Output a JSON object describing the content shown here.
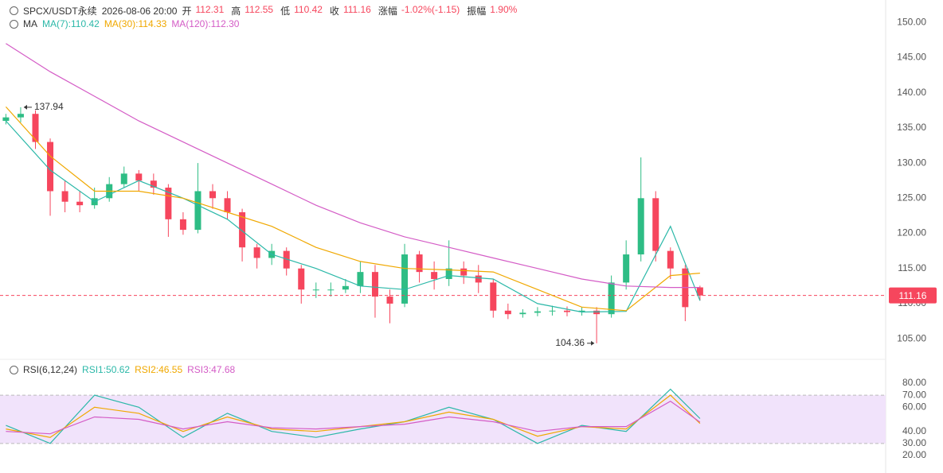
{
  "header": {
    "symbol": "SPCX/USDT永续",
    "time": "2026-08-06 20:00",
    "fields": [
      {
        "label": "开",
        "value": "112.31"
      },
      {
        "label": "高",
        "value": "112.55"
      },
      {
        "label": "低",
        "value": "110.42"
      },
      {
        "label": "收",
        "value": "111.16"
      },
      {
        "label": "涨幅",
        "value": "-1.02%(-1.15)"
      },
      {
        "label": "振幅",
        "value": "1.90%"
      }
    ],
    "value_color": "#f6465d"
  },
  "chart_data": [
    {
      "type": "candlestick",
      "indicator": "MA",
      "xlim": [
        -0.4,
        47.6
      ],
      "ylim": [
        102.3,
        153.2
      ],
      "yticks": [
        {
          "value": 105,
          "label": "105.00"
        },
        {
          "value": 110,
          "label": "110.00"
        },
        {
          "value": 115,
          "label": "115.00"
        },
        {
          "value": 120,
          "label": "120.00"
        },
        {
          "value": 125,
          "label": "125.00"
        },
        {
          "value": 130,
          "label": "130.00"
        },
        {
          "value": 135,
          "label": "135.00"
        },
        {
          "value": 140,
          "label": "140.00"
        },
        {
          "value": 145,
          "label": "145.00"
        },
        {
          "value": 150,
          "label": "150.00"
        }
      ],
      "up_color": "#2ebd85",
      "down_color": "#f6465d",
      "open": [
        136,
        136.5,
        137,
        133,
        126,
        124.5,
        124,
        125,
        127,
        128.5,
        127.5,
        126.5,
        122,
        120.5,
        126,
        125,
        123,
        118,
        116.5,
        117.5,
        115,
        112,
        112,
        112,
        112.5,
        114.5,
        111,
        110,
        117,
        114.5,
        113.5,
        115,
        114,
        113,
        109,
        108.5,
        108.7,
        108.9,
        109,
        108.8,
        109,
        108.5,
        113,
        117,
        125,
        117.5,
        115,
        112.31
      ],
      "high": [
        137,
        137.94,
        137.5,
        133.5,
        127.5,
        126,
        126.5,
        128,
        129.5,
        129,
        128.5,
        127,
        123,
        130,
        127,
        126,
        123.5,
        118.5,
        118.5,
        118,
        115.5,
        113,
        113,
        113.5,
        116,
        115.5,
        112,
        118.5,
        117.5,
        116,
        119,
        116,
        115.5,
        113.5,
        110,
        109.2,
        109.5,
        109.7,
        109.6,
        109.5,
        109.5,
        114,
        119,
        130.8,
        126,
        118,
        115.5,
        112.55
      ],
      "low": [
        135.5,
        135.8,
        132,
        122.5,
        123,
        123,
        123.5,
        124.5,
        126.5,
        126,
        125.5,
        119.5,
        119.8,
        120,
        123.5,
        122,
        116,
        115,
        115.5,
        114,
        110,
        110.8,
        111,
        111.5,
        111.5,
        108,
        107.2,
        109.5,
        113,
        112,
        112.5,
        112.8,
        111.5,
        108,
        107.8,
        108,
        108.2,
        108.3,
        108.2,
        108.3,
        104.36,
        108,
        112,
        116,
        116,
        113.5,
        107.5,
        110.42
      ],
      "close": [
        136.5,
        137,
        133,
        126,
        124.5,
        124,
        125,
        127,
        128.5,
        127.5,
        126.5,
        122,
        120.5,
        126,
        125,
        123,
        118,
        116.5,
        117.5,
        115,
        112,
        112,
        112,
        112.5,
        114.5,
        111,
        110,
        117,
        114.5,
        113.5,
        115,
        114,
        113,
        109,
        108.5,
        108.7,
        108.9,
        109,
        108.8,
        109,
        108.5,
        113,
        117,
        125,
        117.5,
        115,
        109.5,
        111.16
      ],
      "series": [
        {
          "name": "MA(7):110.42",
          "color": "#2bb8a8",
          "x": [
            0,
            3,
            6,
            9,
            12,
            15,
            18,
            21,
            24,
            27,
            30,
            33,
            36,
            39,
            42,
            45,
            47
          ],
          "values": [
            136,
            129,
            124.5,
            127.5,
            125,
            122,
            117,
            115,
            112.5,
            112,
            114,
            113.5,
            110,
            108.8,
            108.9,
            121,
            110.42
          ]
        },
        {
          "name": "MA(30):114.33",
          "color": "#f0a800",
          "x": [
            0,
            3,
            6,
            9,
            12,
            15,
            18,
            21,
            24,
            27,
            30,
            33,
            36,
            39,
            42,
            45,
            47
          ],
          "values": [
            138,
            131,
            126,
            126,
            125,
            123,
            121,
            118,
            116,
            115,
            114.8,
            114.5,
            112,
            109.5,
            109,
            114,
            114.33
          ]
        },
        {
          "name": "MA(120):112.30",
          "color": "#d45cc6",
          "x": [
            0,
            3,
            6,
            9,
            12,
            15,
            18,
            21,
            24,
            27,
            30,
            33,
            36,
            39,
            42,
            45,
            47
          ],
          "values": [
            147,
            143,
            139.5,
            136,
            133,
            130,
            127,
            124,
            121.5,
            119.5,
            118,
            116.5,
            115,
            113.5,
            112.5,
            112.3,
            112.3
          ]
        }
      ],
      "annotations": [
        {
          "text": "137.94",
          "x": 1,
          "y": 137.94
        },
        {
          "text": "104.36",
          "x": 40,
          "y": 104.36
        }
      ],
      "last_price": 111.16,
      "last_price_color": "#f6465d"
    },
    {
      "type": "line",
      "indicator": "RSI(6,12,24)",
      "xlim": [
        -0.4,
        47.6
      ],
      "ylim": [
        5.5,
        95.8
      ],
      "yticks": [
        {
          "value": 20,
          "label": "20.00"
        },
        {
          "value": 30,
          "label": "30.00"
        },
        {
          "value": 40,
          "label": "40.00"
        },
        {
          "value": 60,
          "label": "60.00"
        },
        {
          "value": 70,
          "label": "70.00"
        },
        {
          "value": 80,
          "label": "80.00"
        }
      ],
      "band": [
        30,
        70
      ],
      "band_color": "#f1e3fb",
      "series": [
        {
          "name": "RSI1:50.62",
          "color": "#2bb8a8",
          "x": [
            0,
            3,
            6,
            9,
            12,
            15,
            18,
            21,
            24,
            27,
            30,
            33,
            36,
            39,
            42,
            45,
            47
          ],
          "values": [
            45,
            30,
            70,
            60,
            35,
            55,
            40,
            35,
            42,
            48,
            60,
            50,
            30,
            45,
            40,
            75,
            50.62
          ]
        },
        {
          "name": "RSI2:46.55",
          "color": "#f0a800",
          "x": [
            0,
            3,
            6,
            9,
            12,
            15,
            18,
            21,
            24,
            27,
            30,
            33,
            36,
            39,
            42,
            45,
            47
          ],
          "values": [
            42,
            35,
            60,
            55,
            40,
            52,
            42,
            40,
            44,
            48,
            56,
            50,
            36,
            44,
            42,
            70,
            46.55
          ]
        },
        {
          "name": "RSI3:47.68",
          "color": "#d45cc6",
          "x": [
            0,
            3,
            6,
            9,
            12,
            15,
            18,
            21,
            24,
            27,
            30,
            33,
            36,
            39,
            42,
            45,
            47
          ],
          "values": [
            40,
            38,
            52,
            50,
            42,
            48,
            43,
            42,
            44,
            46,
            52,
            48,
            40,
            44,
            44,
            65,
            47.68
          ]
        }
      ]
    }
  ]
}
